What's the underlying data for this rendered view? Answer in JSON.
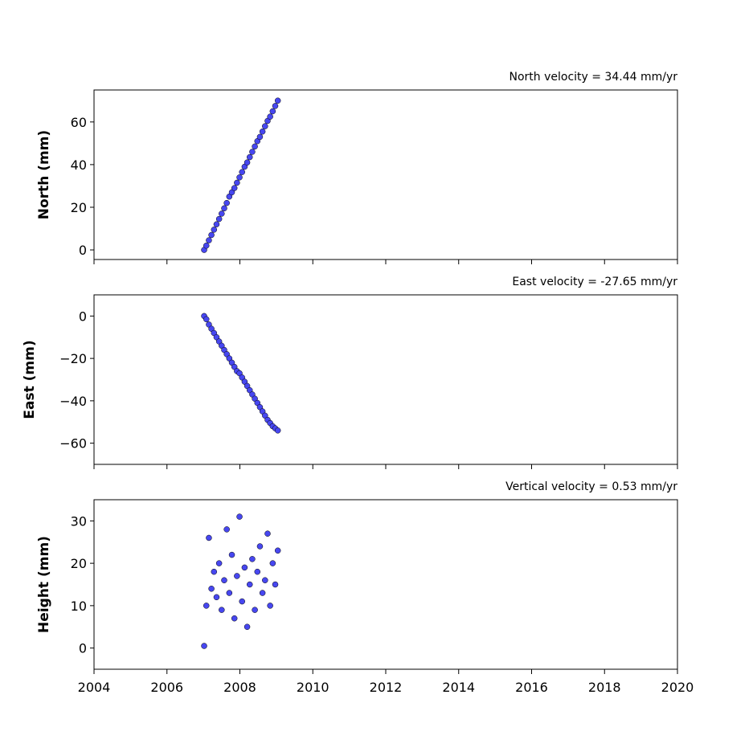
{
  "chart_data": [
    {
      "type": "scatter",
      "title": "North velocity = 34.44 mm/yr",
      "ylabel": "North (mm)",
      "color": "#4747f0",
      "show_xtick_labels": false,
      "x": [
        2007.02,
        2007.08,
        2007.15,
        2007.22,
        2007.29,
        2007.36,
        2007.43,
        2007.5,
        2007.57,
        2007.64,
        2007.71,
        2007.78,
        2007.85,
        2007.92,
        2007.99,
        2008.06,
        2008.13,
        2008.2,
        2008.27,
        2008.34,
        2008.41,
        2008.48,
        2008.55,
        2008.62,
        2008.69,
        2008.76,
        2008.83,
        2008.9,
        2008.97,
        2009.04
      ],
      "values": [
        0,
        2,
        4.5,
        7,
        9.5,
        12,
        14.5,
        17,
        19.5,
        22,
        25,
        27,
        29,
        31.5,
        34,
        36.5,
        39,
        41,
        43.5,
        46,
        48.5,
        51,
        53,
        55.5,
        58,
        60.5,
        62.5,
        65,
        67.5,
        70
      ],
      "xlim": [
        2004,
        2020
      ],
      "xticks": [
        2004,
        2006,
        2008,
        2010,
        2012,
        2014,
        2016,
        2018,
        2020
      ],
      "ylim": [
        -4.5,
        75
      ],
      "yticks": [
        0,
        20,
        40,
        60
      ]
    },
    {
      "type": "scatter",
      "title": "East velocity = -27.65 mm/yr",
      "ylabel": "East (mm)",
      "color": "#4747f0",
      "show_xtick_labels": false,
      "x": [
        2007.02,
        2007.08,
        2007.15,
        2007.22,
        2007.29,
        2007.36,
        2007.43,
        2007.5,
        2007.57,
        2007.64,
        2007.71,
        2007.78,
        2007.85,
        2007.92,
        2007.99,
        2008.06,
        2008.13,
        2008.2,
        2008.27,
        2008.34,
        2008.41,
        2008.48,
        2008.55,
        2008.62,
        2008.69,
        2008.76,
        2008.83,
        2008.9,
        2008.97,
        2009.04
      ],
      "values": [
        0,
        -1.5,
        -4,
        -6,
        -8,
        -10,
        -12,
        -14,
        -16,
        -18,
        -20,
        -22,
        -24,
        -26,
        -27,
        -29,
        -31,
        -33,
        -35,
        -37,
        -39,
        -41,
        -43,
        -45,
        -47,
        -49,
        -50.5,
        -52,
        -53,
        -54
      ],
      "xlim": [
        2004,
        2020
      ],
      "xticks": [
        2004,
        2006,
        2008,
        2010,
        2012,
        2014,
        2016,
        2018,
        2020
      ],
      "ylim": [
        -70,
        10
      ],
      "yticks": [
        {
          "value": 0,
          "label": "0"
        },
        {
          "value": -20,
          "label": "−20"
        },
        {
          "value": -40,
          "label": "−40"
        },
        {
          "value": -60,
          "label": "−60"
        }
      ]
    },
    {
      "type": "scatter",
      "title": "Vertical velocity = 0.53 mm/yr",
      "ylabel": "Height (mm)",
      "color": "#4747f0",
      "show_xtick_labels": true,
      "x": [
        2007.02,
        2007.08,
        2007.15,
        2007.22,
        2007.29,
        2007.36,
        2007.43,
        2007.5,
        2007.57,
        2007.64,
        2007.71,
        2007.78,
        2007.85,
        2007.92,
        2007.99,
        2008.06,
        2008.13,
        2008.2,
        2008.27,
        2008.34,
        2008.41,
        2008.48,
        2008.55,
        2008.62,
        2008.69,
        2008.76,
        2008.83,
        2008.9,
        2008.97,
        2009.04
      ],
      "values": [
        0.5,
        10,
        26,
        14,
        18,
        12,
        20,
        9,
        16,
        28,
        13,
        22,
        7,
        17,
        31,
        11,
        19,
        5,
        15,
        21,
        9,
        18,
        24,
        13,
        16,
        27,
        10,
        20,
        15,
        23
      ],
      "xlim": [
        2004,
        2020
      ],
      "xticks": [
        2004,
        2006,
        2008,
        2010,
        2012,
        2014,
        2016,
        2018,
        2020
      ],
      "ylim": [
        -5,
        35
      ],
      "yticks": [
        0,
        10,
        20,
        30
      ]
    }
  ]
}
